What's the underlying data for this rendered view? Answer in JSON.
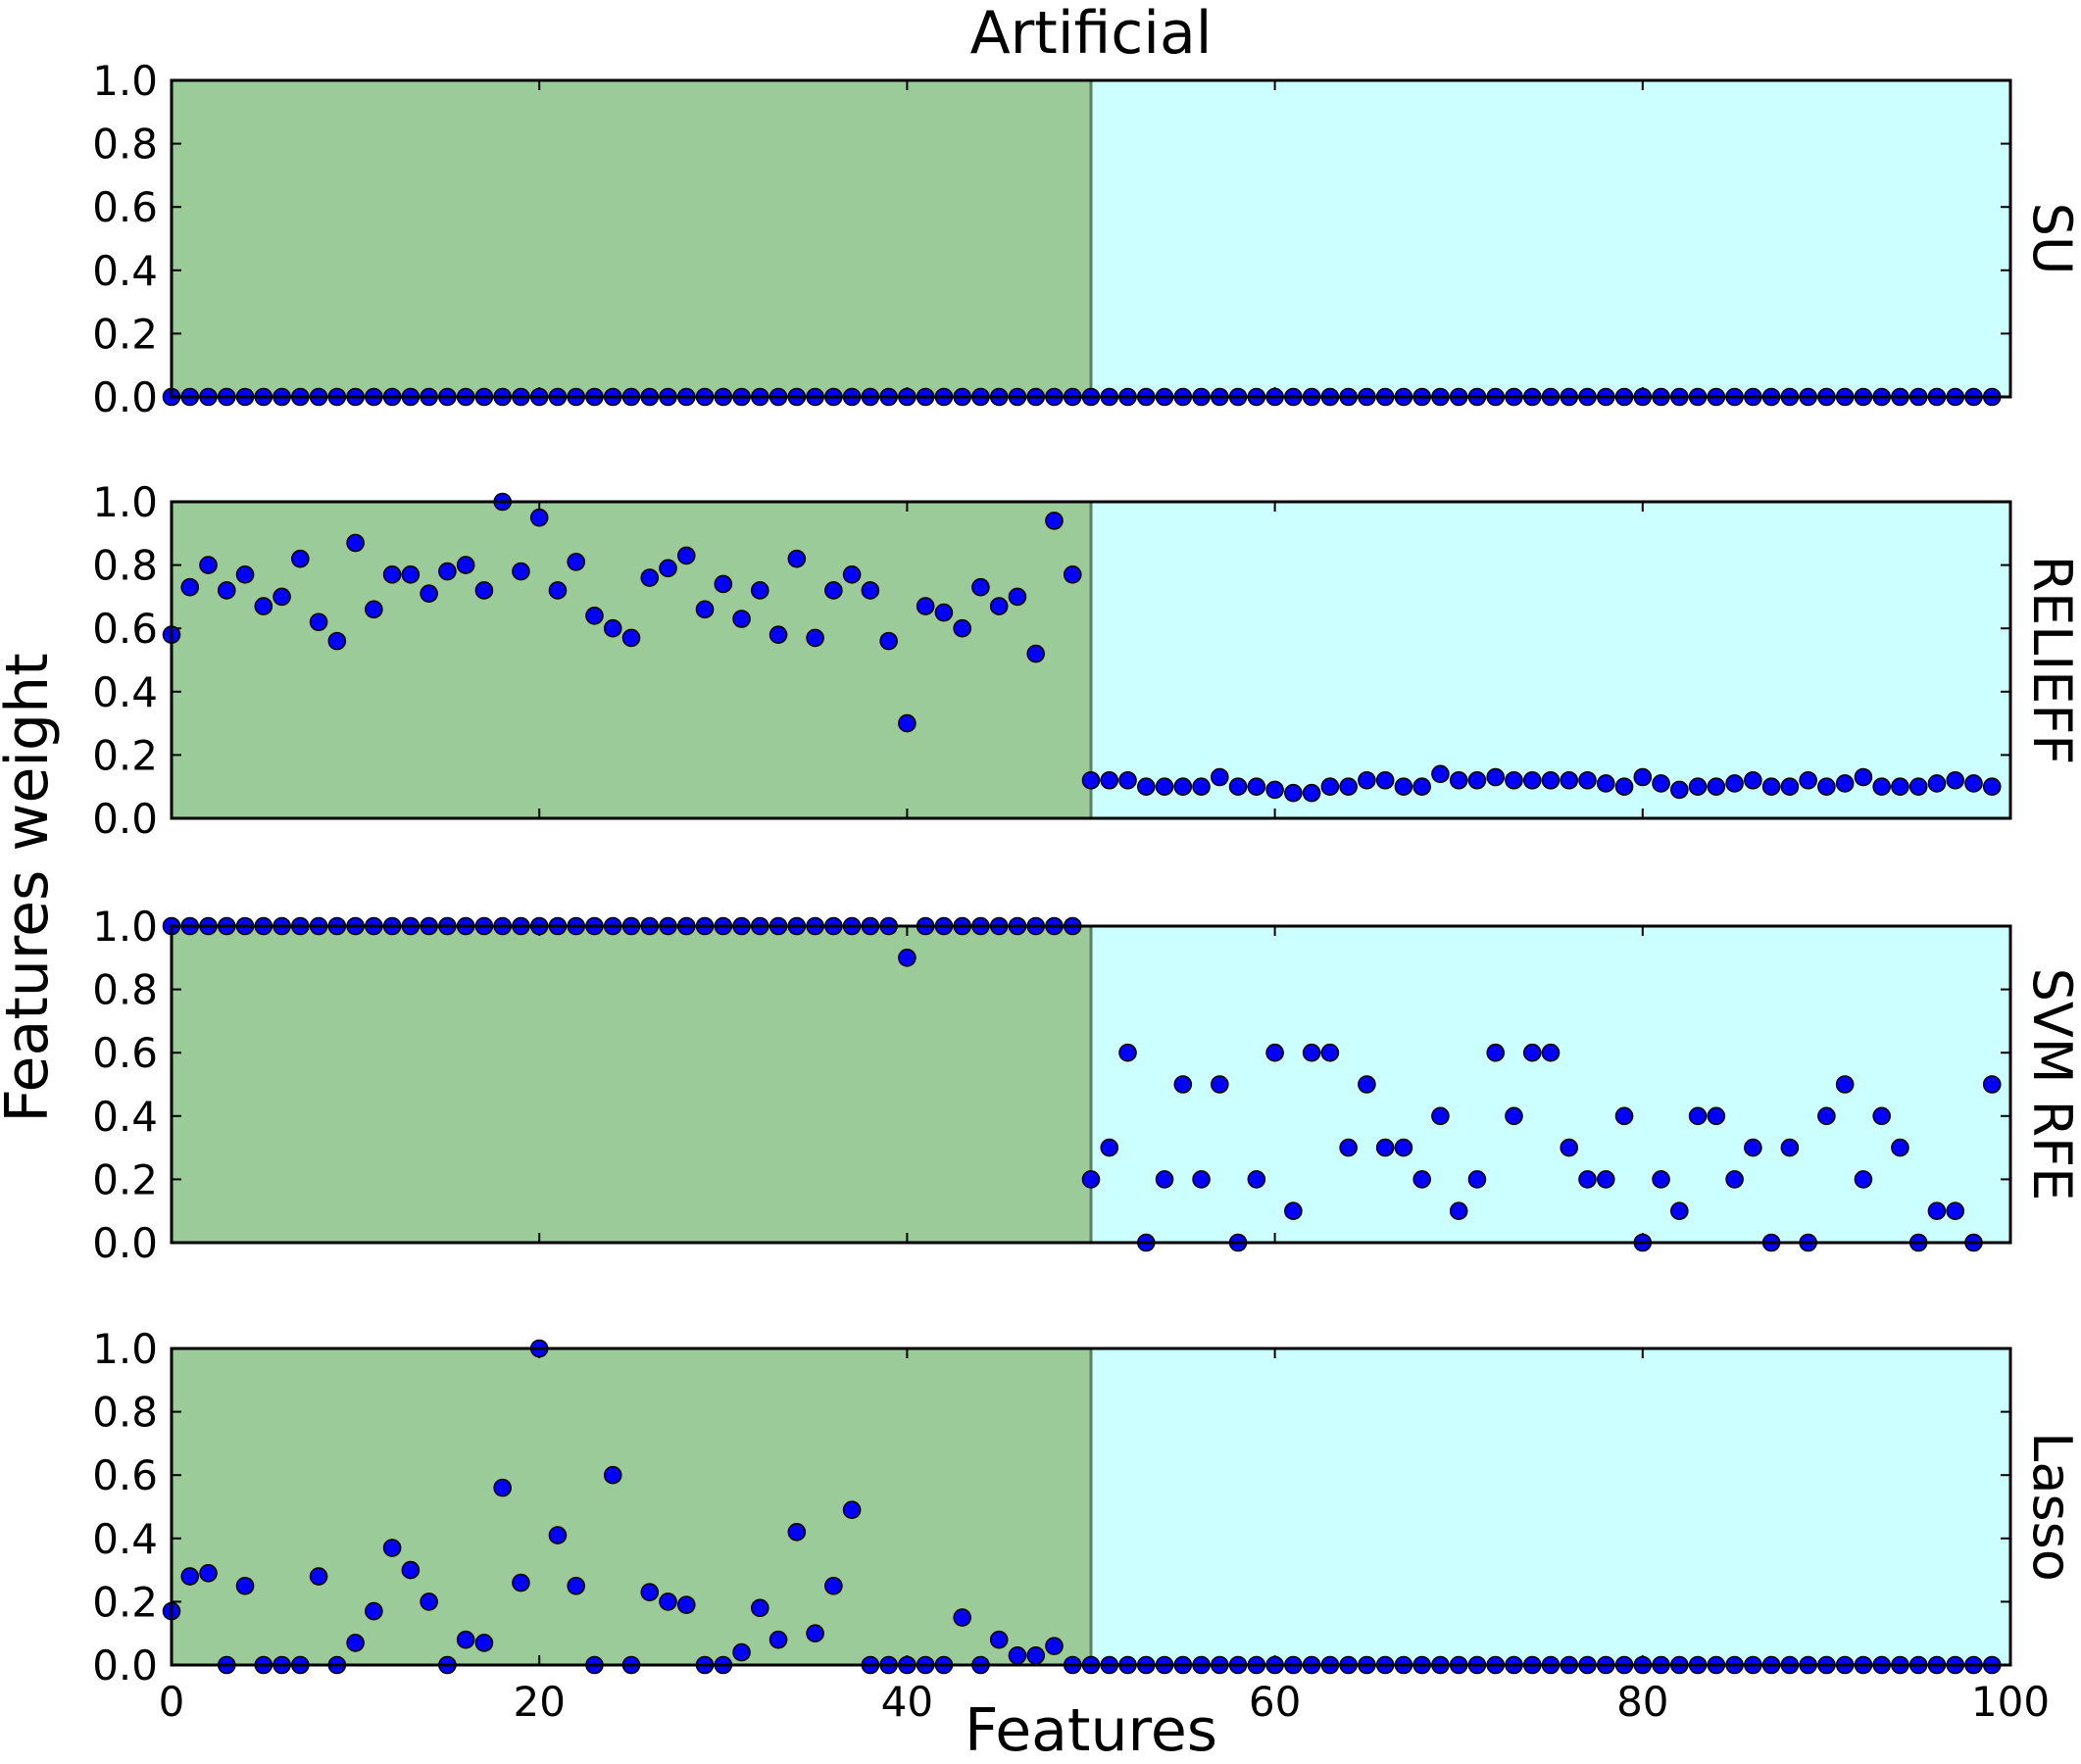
{
  "figure": {
    "title": "Artificial",
    "xlabel": "Features",
    "ylabel": "Features weight"
  },
  "colors": {
    "relevant_region": "#9acb98",
    "irrelevant_region": "#ccffff",
    "divider": "#5f7f5f",
    "point_fill": "#0000ff",
    "point_stroke": "#000000"
  },
  "chart_data": [
    {
      "type": "scatter",
      "name": "SU",
      "x": [
        0,
        1,
        2,
        3,
        4,
        5,
        6,
        7,
        8,
        9,
        10,
        11,
        12,
        13,
        14,
        15,
        16,
        17,
        18,
        19,
        20,
        21,
        22,
        23,
        24,
        25,
        26,
        27,
        28,
        29,
        30,
        31,
        32,
        33,
        34,
        35,
        36,
        37,
        38,
        39,
        40,
        41,
        42,
        43,
        44,
        45,
        46,
        47,
        48,
        49,
        50,
        51,
        52,
        53,
        54,
        55,
        56,
        57,
        58,
        59,
        60,
        61,
        62,
        63,
        64,
        65,
        66,
        67,
        68,
        69,
        70,
        71,
        72,
        73,
        74,
        75,
        76,
        77,
        78,
        79,
        80,
        81,
        82,
        83,
        84,
        85,
        86,
        87,
        88,
        89,
        90,
        91,
        92,
        93,
        94,
        95,
        96,
        97,
        98,
        99
      ],
      "y": [
        0,
        0,
        0,
        0,
        0,
        0,
        0,
        0,
        0,
        0,
        0,
        0,
        0,
        0,
        0,
        0,
        0,
        0,
        0,
        0,
        0,
        0,
        0,
        0,
        0,
        0,
        0,
        0,
        0,
        0,
        0,
        0,
        0,
        0,
        0,
        0,
        0,
        0,
        0,
        0,
        0,
        0,
        0,
        0,
        0,
        0,
        0,
        0,
        0,
        0,
        0,
        0,
        0,
        0,
        0,
        0,
        0,
        0,
        0,
        0,
        0,
        0,
        0,
        0,
        0,
        0,
        0,
        0,
        0,
        0,
        0,
        0,
        0,
        0,
        0,
        0,
        0,
        0,
        0,
        0,
        0,
        0,
        0,
        0,
        0,
        0,
        0,
        0,
        0,
        0,
        0,
        0,
        0,
        0,
        0,
        0,
        0,
        0,
        0,
        0
      ],
      "xlim": [
        0,
        100
      ],
      "ylim": [
        0,
        1.0
      ],
      "xticks": [
        0,
        20,
        40,
        60,
        80,
        100
      ],
      "yticks": [
        "0.0",
        "0.2",
        "0.4",
        "0.6",
        "0.8",
        "1.0"
      ],
      "region_split": 50,
      "grid": false
    },
    {
      "type": "scatter",
      "name": "RELIEFF",
      "x": [
        0,
        1,
        2,
        3,
        4,
        5,
        6,
        7,
        8,
        9,
        10,
        11,
        12,
        13,
        14,
        15,
        16,
        17,
        18,
        19,
        20,
        21,
        22,
        23,
        24,
        25,
        26,
        27,
        28,
        29,
        30,
        31,
        32,
        33,
        34,
        35,
        36,
        37,
        38,
        39,
        40,
        41,
        42,
        43,
        44,
        45,
        46,
        47,
        48,
        49,
        50,
        51,
        52,
        53,
        54,
        55,
        56,
        57,
        58,
        59,
        60,
        61,
        62,
        63,
        64,
        65,
        66,
        67,
        68,
        69,
        70,
        71,
        72,
        73,
        74,
        75,
        76,
        77,
        78,
        79,
        80,
        81,
        82,
        83,
        84,
        85,
        86,
        87,
        88,
        89,
        90,
        91,
        92,
        93,
        94,
        95,
        96,
        97,
        98,
        99
      ],
      "y": [
        0.58,
        0.73,
        0.8,
        0.72,
        0.77,
        0.67,
        0.7,
        0.82,
        0.62,
        0.56,
        0.87,
        0.66,
        0.77,
        0.77,
        0.71,
        0.78,
        0.8,
        0.72,
        1.0,
        0.78,
        0.95,
        0.72,
        0.81,
        0.64,
        0.6,
        0.57,
        0.76,
        0.79,
        0.83,
        0.66,
        0.74,
        0.63,
        0.72,
        0.58,
        0.82,
        0.57,
        0.72,
        0.77,
        0.72,
        0.56,
        0.3,
        0.67,
        0.65,
        0.6,
        0.73,
        0.67,
        0.7,
        0.52,
        0.94,
        0.77,
        0.12,
        0.12,
        0.12,
        0.1,
        0.1,
        0.1,
        0.1,
        0.13,
        0.1,
        0.1,
        0.09,
        0.08,
        0.08,
        0.1,
        0.1,
        0.12,
        0.12,
        0.1,
        0.1,
        0.14,
        0.12,
        0.12,
        0.13,
        0.12,
        0.12,
        0.12,
        0.12,
        0.12,
        0.11,
        0.1,
        0.13,
        0.11,
        0.09,
        0.1,
        0.1,
        0.11,
        0.12,
        0.1,
        0.1,
        0.12,
        0.1,
        0.11,
        0.13,
        0.1,
        0.1,
        0.1,
        0.11,
        0.12,
        0.11,
        0.1
      ],
      "xlim": [
        0,
        100
      ],
      "ylim": [
        0,
        1.0
      ],
      "xticks": [
        0,
        20,
        40,
        60,
        80,
        100
      ],
      "yticks": [
        "0.0",
        "0.2",
        "0.4",
        "0.6",
        "0.8",
        "1.0"
      ],
      "region_split": 50,
      "grid": false
    },
    {
      "type": "scatter",
      "name": "SVM RFE",
      "x": [
        0,
        1,
        2,
        3,
        4,
        5,
        6,
        7,
        8,
        9,
        10,
        11,
        12,
        13,
        14,
        15,
        16,
        17,
        18,
        19,
        20,
        21,
        22,
        23,
        24,
        25,
        26,
        27,
        28,
        29,
        30,
        31,
        32,
        33,
        34,
        35,
        36,
        37,
        38,
        39,
        40,
        41,
        42,
        43,
        44,
        45,
        46,
        47,
        48,
        49,
        50,
        51,
        52,
        53,
        54,
        55,
        56,
        57,
        58,
        59,
        60,
        61,
        62,
        63,
        64,
        65,
        66,
        67,
        68,
        69,
        70,
        71,
        72,
        73,
        74,
        75,
        76,
        77,
        78,
        79,
        80,
        81,
        82,
        83,
        84,
        85,
        86,
        87,
        88,
        89,
        90,
        91,
        92,
        93,
        94,
        95,
        96,
        97,
        98,
        99
      ],
      "y": [
        1.0,
        1.0,
        1.0,
        1.0,
        1.0,
        1.0,
        1.0,
        1.0,
        1.0,
        1.0,
        1.0,
        1.0,
        1.0,
        1.0,
        1.0,
        1.0,
        1.0,
        1.0,
        1.0,
        1.0,
        1.0,
        1.0,
        1.0,
        1.0,
        1.0,
        1.0,
        1.0,
        1.0,
        1.0,
        1.0,
        1.0,
        1.0,
        1.0,
        1.0,
        1.0,
        1.0,
        1.0,
        1.0,
        1.0,
        1.0,
        0.9,
        1.0,
        1.0,
        1.0,
        1.0,
        1.0,
        1.0,
        1.0,
        1.0,
        1.0,
        0.2,
        0.3,
        0.6,
        0.0,
        0.2,
        0.5,
        0.2,
        0.5,
        0.0,
        0.2,
        0.6,
        0.1,
        0.6,
        0.6,
        0.3,
        0.5,
        0.3,
        0.3,
        0.2,
        0.4,
        0.1,
        0.2,
        0.6,
        0.4,
        0.6,
        0.6,
        0.3,
        0.2,
        0.2,
        0.4,
        0.0,
        0.2,
        0.1,
        0.4,
        0.4,
        0.2,
        0.3,
        0.0,
        0.3,
        0.0,
        0.4,
        0.5,
        0.2,
        0.4,
        0.3,
        0.0,
        0.1,
        0.1,
        0.0,
        0.5
      ],
      "xlim": [
        0,
        100
      ],
      "ylim": [
        0,
        1.0
      ],
      "xticks": [
        0,
        20,
        40,
        60,
        80,
        100
      ],
      "yticks": [
        "0.0",
        "0.2",
        "0.4",
        "0.6",
        "0.8",
        "1.0"
      ],
      "region_split": 50,
      "grid": false
    },
    {
      "type": "scatter",
      "name": "Lasso",
      "x": [
        0,
        1,
        2,
        3,
        4,
        5,
        6,
        7,
        8,
        9,
        10,
        11,
        12,
        13,
        14,
        15,
        16,
        17,
        18,
        19,
        20,
        21,
        22,
        23,
        24,
        25,
        26,
        27,
        28,
        29,
        30,
        31,
        32,
        33,
        34,
        35,
        36,
        37,
        38,
        39,
        40,
        41,
        42,
        43,
        44,
        45,
        46,
        47,
        48,
        49,
        50,
        51,
        52,
        53,
        54,
        55,
        56,
        57,
        58,
        59,
        60,
        61,
        62,
        63,
        64,
        65,
        66,
        67,
        68,
        69,
        70,
        71,
        72,
        73,
        74,
        75,
        76,
        77,
        78,
        79,
        80,
        81,
        82,
        83,
        84,
        85,
        86,
        87,
        88,
        89,
        90,
        91,
        92,
        93,
        94,
        95,
        96,
        97,
        98,
        99
      ],
      "y": [
        0.17,
        0.28,
        0.29,
        0.0,
        0.25,
        0.0,
        0.0,
        0.0,
        0.28,
        0.0,
        0.07,
        0.17,
        0.37,
        0.3,
        0.2,
        0.0,
        0.08,
        0.07,
        0.56,
        0.26,
        1.0,
        0.41,
        0.25,
        0.0,
        0.6,
        0.0,
        0.23,
        0.2,
        0.19,
        0.0,
        0.0,
        0.04,
        0.18,
        0.08,
        0.42,
        0.1,
        0.25,
        0.49,
        0.0,
        0.0,
        0.0,
        0.0,
        0.0,
        0.15,
        0.0,
        0.08,
        0.03,
        0.03,
        0.06,
        0.0,
        0,
        0,
        0,
        0,
        0,
        0,
        0,
        0,
        0,
        0,
        0,
        0,
        0,
        0,
        0,
        0,
        0,
        0,
        0,
        0,
        0,
        0,
        0,
        0,
        0,
        0,
        0,
        0,
        0,
        0,
        0,
        0,
        0,
        0,
        0,
        0,
        0,
        0,
        0,
        0,
        0,
        0,
        0,
        0,
        0,
        0,
        0,
        0,
        0,
        0
      ],
      "xlim": [
        0,
        100
      ],
      "ylim": [
        0,
        1.0
      ],
      "xticks": [
        0,
        20,
        40,
        60,
        80,
        100
      ],
      "yticks": [
        "0.0",
        "0.2",
        "0.4",
        "0.6",
        "0.8",
        "1.0"
      ],
      "region_split": 50,
      "grid": false
    }
  ]
}
